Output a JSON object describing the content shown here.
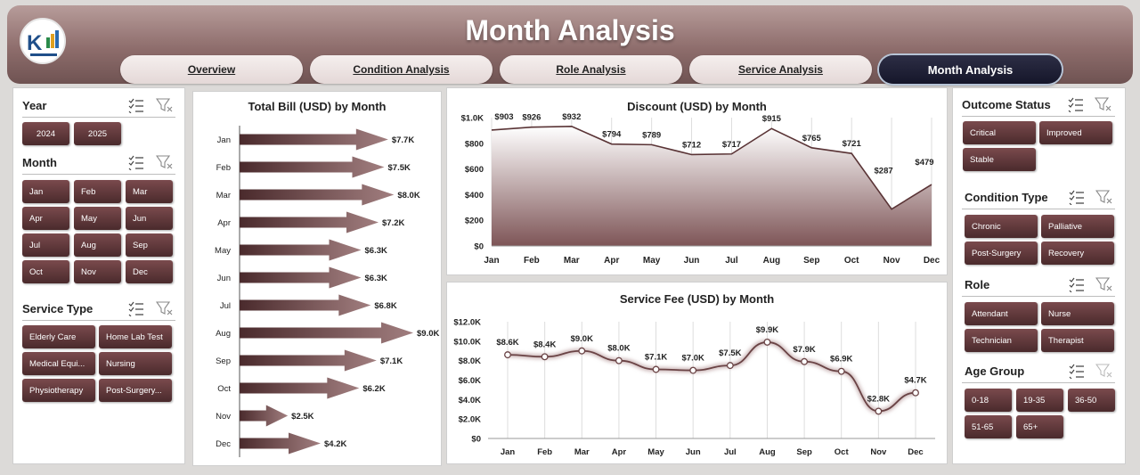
{
  "header": {
    "title": "Month Analysis",
    "tabs": [
      {
        "label": "Overview",
        "active": false
      },
      {
        "label": "Condition Analysis",
        "active": false
      },
      {
        "label": "Role Analysis",
        "active": false
      },
      {
        "label": "Service Analysis",
        "active": false
      },
      {
        "label": "Month Analysis",
        "active": true
      }
    ]
  },
  "colors": {
    "accent": "#5a3436",
    "chip_dark": "#4a2a2c",
    "active_tab": "#1c1d33"
  },
  "left_slicers": {
    "year": {
      "title": "Year",
      "items": [
        "2024",
        "2025"
      ]
    },
    "month": {
      "title": "Month",
      "items": [
        "Jan",
        "Feb",
        "Mar",
        "Apr",
        "May",
        "Jun",
        "Jul",
        "Aug",
        "Sep",
        "Oct",
        "Nov",
        "Dec"
      ]
    },
    "service_type": {
      "title": "Service Type",
      "items": [
        "Elderly Care",
        "Home Lab Test",
        "Medical Equi...",
        "Nursing",
        "Physiotherapy",
        "Post-Surgery..."
      ]
    }
  },
  "right_slicers": {
    "outcome_status": {
      "title": "Outcome Status",
      "items": [
        "Critical",
        "Improved",
        "Stable"
      ]
    },
    "condition_type": {
      "title": "Condition Type",
      "items": [
        "Chronic",
        "Palliative",
        "Post-Surgery",
        "Recovery"
      ]
    },
    "role": {
      "title": "Role",
      "items": [
        "Attendant",
        "Nurse",
        "Technician",
        "Therapist"
      ]
    },
    "age_group": {
      "title": "Age Group",
      "items": [
        "0-18",
        "19-35",
        "36-50",
        "51-65",
        "65+"
      ]
    }
  },
  "chart_data": [
    {
      "type": "bar",
      "orientation": "horizontal",
      "title": "Total Bill (USD) by Month",
      "categories": [
        "Jan",
        "Feb",
        "Mar",
        "Apr",
        "May",
        "Jun",
        "Jul",
        "Aug",
        "Sep",
        "Oct",
        "Nov",
        "Dec"
      ],
      "values": [
        7.7,
        7.5,
        8.0,
        7.2,
        6.3,
        6.3,
        6.8,
        9.0,
        7.1,
        6.2,
        2.5,
        4.2
      ],
      "labels": [
        "$7.7K",
        "$7.5K",
        "$8.0K",
        "$7.2K",
        "$6.3K",
        "$6.3K",
        "$6.8K",
        "$9.0K",
        "$7.1K",
        "$6.2K",
        "$2.5K",
        "$4.2K"
      ],
      "unit": "thousand USD",
      "xlim": [
        0,
        9.0
      ]
    },
    {
      "type": "area",
      "title": "Discount (USD) by Month",
      "categories": [
        "Jan",
        "Feb",
        "Mar",
        "Apr",
        "May",
        "Jun",
        "Jul",
        "Aug",
        "Sep",
        "Oct",
        "Nov",
        "Dec"
      ],
      "values": [
        903,
        926,
        932,
        794,
        789,
        712,
        717,
        915,
        765,
        721,
        287,
        479
      ],
      "labels": [
        "$903",
        "$926",
        "$932",
        "$794",
        "$789",
        "$712",
        "$717",
        "$915",
        "$765",
        "$721",
        "$287",
        "$479"
      ],
      "ylim": [
        0,
        1000
      ],
      "yticks": [
        "$0",
        "$200",
        "$400",
        "$600",
        "$800",
        "$1.0K"
      ]
    },
    {
      "type": "line",
      "title": "Service Fee (USD) by Month",
      "categories": [
        "Jan",
        "Feb",
        "Mar",
        "Apr",
        "May",
        "Jun",
        "Jul",
        "Aug",
        "Sep",
        "Oct",
        "Nov",
        "Dec"
      ],
      "values": [
        8.6,
        8.4,
        9.0,
        8.0,
        7.1,
        7.0,
        7.5,
        9.9,
        7.9,
        6.9,
        2.8,
        4.7
      ],
      "labels": [
        "$8.6K",
        "$8.4K",
        "$9.0K",
        "$8.0K",
        "$7.1K",
        "$7.0K",
        "$7.5K",
        "$9.9K",
        "$7.9K",
        "$6.9K",
        "$2.8K",
        "$4.7K"
      ],
      "unit": "thousand USD",
      "ylim": [
        0,
        12
      ],
      "yticks": [
        "$0",
        "$2.0K",
        "$4.0K",
        "$6.0K",
        "$8.0K",
        "$10.0K",
        "$12.0K"
      ]
    }
  ]
}
